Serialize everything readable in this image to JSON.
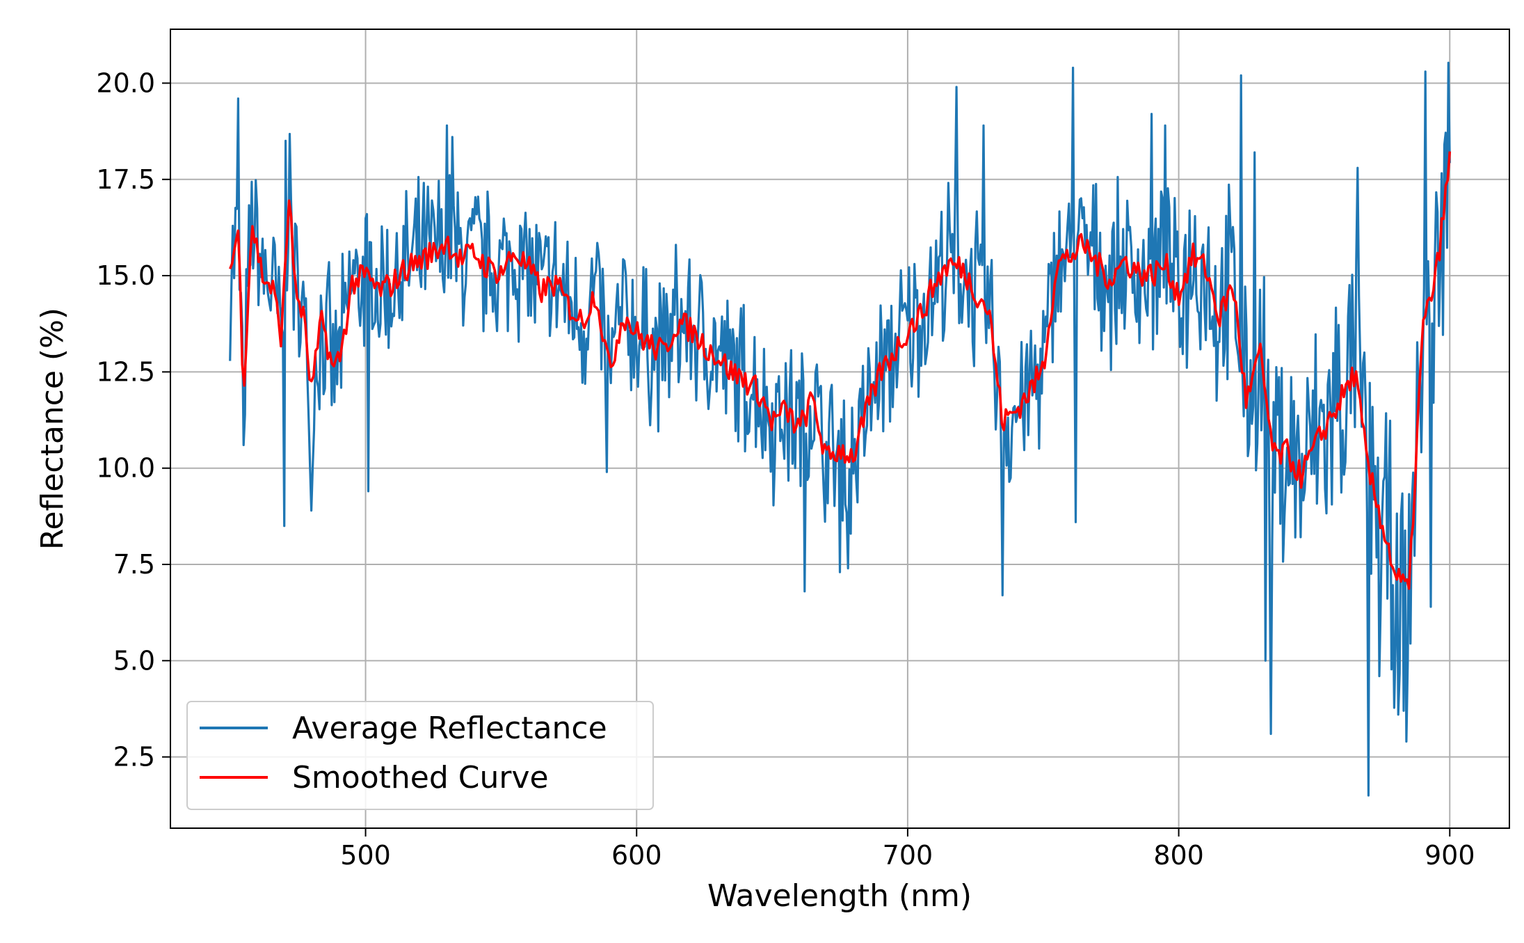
{
  "chart_data": {
    "type": "line",
    "xlabel": "Wavelength (nm)",
    "ylabel": "Reflectance (%)",
    "xlim": [
      428,
      922
    ],
    "ylim": [
      0.65,
      21.4
    ],
    "xticks": [
      500,
      600,
      700,
      800,
      900
    ],
    "xtick_labels": [
      "500",
      "600",
      "700",
      "800",
      "900"
    ],
    "yticks": [
      2.5,
      5.0,
      7.5,
      10.0,
      12.5,
      15.0,
      17.5,
      20.0
    ],
    "ytick_labels": [
      "2.5",
      "5.0",
      "7.5",
      "10.0",
      "12.5",
      "15.0",
      "17.5",
      "20.0"
    ],
    "grid": true,
    "legend_position": "lower-left",
    "x_range": [
      450,
      900
    ],
    "series": [
      {
        "name": "Average Reflectance",
        "color": "#1f77b4",
        "role": "raw",
        "noise_amplitude": 2.2,
        "noisy_regions": [
          [
            800,
            830
          ],
          [
            830,
            900
          ]
        ],
        "spikes": [
          {
            "x": 453,
            "y": 19.6
          },
          {
            "x": 455,
            "y": 10.6
          },
          {
            "x": 470,
            "y": 8.5
          },
          {
            "x": 470.5,
            "y": 18.5
          },
          {
            "x": 480,
            "y": 8.9
          },
          {
            "x": 501,
            "y": 9.4
          },
          {
            "x": 530,
            "y": 18.9
          },
          {
            "x": 532,
            "y": 18.6
          },
          {
            "x": 589,
            "y": 9.9
          },
          {
            "x": 662,
            "y": 6.8
          },
          {
            "x": 675,
            "y": 7.3
          },
          {
            "x": 678,
            "y": 7.4
          },
          {
            "x": 718,
            "y": 19.9
          },
          {
            "x": 728,
            "y": 18.9
          },
          {
            "x": 735,
            "y": 6.7
          },
          {
            "x": 761,
            "y": 20.4
          },
          {
            "x": 762,
            "y": 8.6
          },
          {
            "x": 790,
            "y": 19.2
          },
          {
            "x": 795,
            "y": 18.9
          },
          {
            "x": 823,
            "y": 20.2
          },
          {
            "x": 828,
            "y": 18.2
          },
          {
            "x": 832,
            "y": 5.0
          },
          {
            "x": 834,
            "y": 3.1
          },
          {
            "x": 866,
            "y": 17.8
          },
          {
            "x": 870,
            "y": 1.5
          },
          {
            "x": 874,
            "y": 4.6
          },
          {
            "x": 881,
            "y": 3.6
          },
          {
            "x": 884,
            "y": 2.9
          },
          {
            "x": 891,
            "y": 20.3
          },
          {
            "x": 893,
            "y": 6.4
          },
          {
            "x": 898,
            "y": 18.4
          }
        ]
      },
      {
        "name": "Smoothed Curve",
        "color": "#ff0000",
        "role": "smoothed",
        "x": [
          450,
          453,
          455,
          458,
          462,
          466,
          469,
          472,
          474,
          477,
          480,
          484,
          488,
          491,
          495,
          500,
          505,
          510,
          515,
          520,
          525,
          530,
          535,
          540,
          545,
          550,
          555,
          560,
          565,
          570,
          575,
          580,
          585,
          590,
          595,
          600,
          605,
          610,
          615,
          620,
          625,
          630,
          635,
          640,
          645,
          650,
          655,
          660,
          665,
          670,
          675,
          680,
          685,
          690,
          695,
          700,
          705,
          710,
          715,
          720,
          725,
          730,
          735,
          740,
          745,
          750,
          755,
          760,
          765,
          770,
          775,
          780,
          785,
          790,
          795,
          800,
          805,
          810,
          815,
          820,
          825,
          830,
          835,
          840,
          845,
          850,
          855,
          860,
          865,
          870,
          875,
          880,
          885,
          890,
          895,
          900
        ],
        "y": [
          15.1,
          16.2,
          12.0,
          16.4,
          15.0,
          14.6,
          13.4,
          17.3,
          14.6,
          14.0,
          12.0,
          13.9,
          12.5,
          13.0,
          14.8,
          15.0,
          14.6,
          14.8,
          15.2,
          15.4,
          15.6,
          15.9,
          15.4,
          15.6,
          15.2,
          15.1,
          15.6,
          15.2,
          14.6,
          14.8,
          14.2,
          13.8,
          14.6,
          12.5,
          14.0,
          13.5,
          13.2,
          13.0,
          13.8,
          13.6,
          13.2,
          12.9,
          12.5,
          12.3,
          12.0,
          11.2,
          11.5,
          11.0,
          11.8,
          10.2,
          10.5,
          10.3,
          11.5,
          12.5,
          13.0,
          13.6,
          14.0,
          14.8,
          15.3,
          15.2,
          14.6,
          14.1,
          11.2,
          11.5,
          12.0,
          12.6,
          15.3,
          15.5,
          15.8,
          15.3,
          14.9,
          15.4,
          15.1,
          15.0,
          15.3,
          14.5,
          15.5,
          15.2,
          13.9,
          14.8,
          11.7,
          13.0,
          10.3,
          10.4,
          9.8,
          10.5,
          11.2,
          11.8,
          12.5,
          9.9,
          8.6,
          7.2,
          6.8,
          13.6,
          15.0,
          18.0
        ]
      }
    ]
  }
}
